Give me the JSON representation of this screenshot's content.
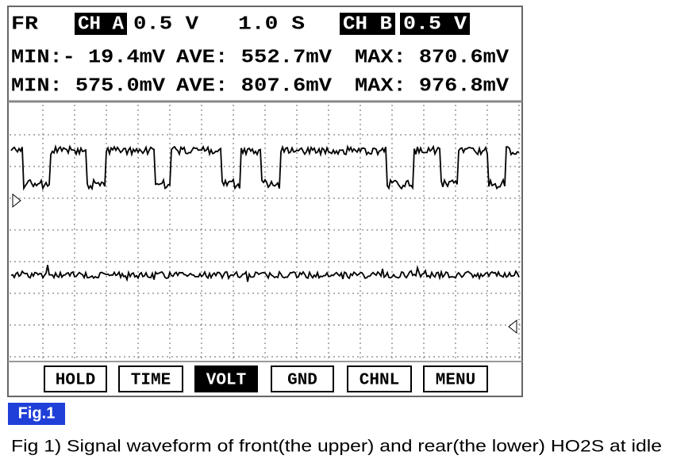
{
  "header": {
    "mode": "FR",
    "channel_a": {
      "label": "CH A",
      "scale": "0.5 V"
    },
    "timebase": "1.0 S",
    "channel_b": {
      "label": "CH B",
      "scale": "0.5 V"
    }
  },
  "readings": [
    {
      "min": "MIN:- 19.4mV",
      "ave": "AVE: 552.7mV",
      "max": "MAX: 870.6mV"
    },
    {
      "min": "MIN: 575.0mV",
      "ave": "AVE: 807.6mV",
      "max": "MAX: 976.8mV"
    }
  ],
  "buttons": [
    "HOLD",
    "TIME",
    "VOLT",
    "GND",
    "CHNL",
    "MENU"
  ],
  "figure_label": "Fig.1",
  "caption": "Fig 1) Signal waveform of front(the upper) and rear(the lower) HO2S at idle"
}
